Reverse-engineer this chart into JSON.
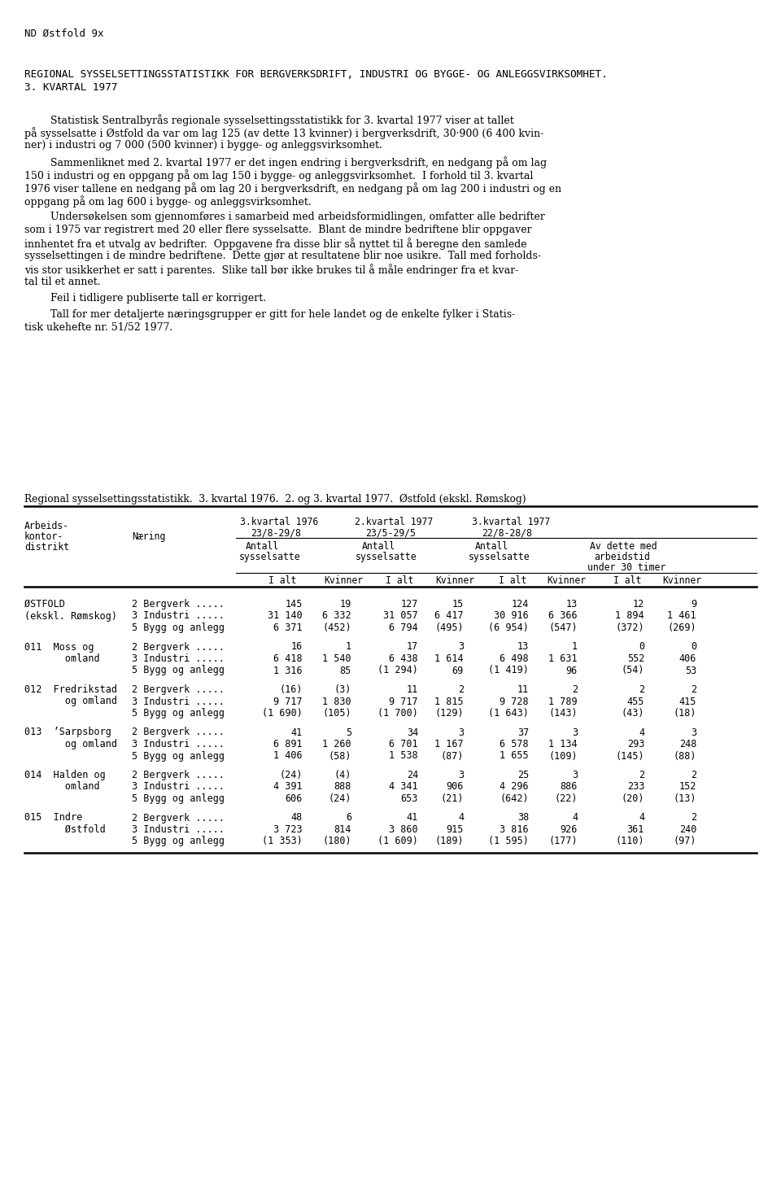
{
  "page_label": "ND Østfold 9x",
  "title_line1": "REGIONAL SYSSELSETTINGSSTATISTIKK FOR BERGVERKSDRIFT, INDUSTRI OG BYGGE- OG ANLEGGSVIRKSOMHET.",
  "title_line2": "3. KVARTAL 1977",
  "para1": [
    "        Statistisk Sentralbyrås regionale sysselsettingsstatistikk for 3. kvartal 1977 viser at tallet",
    "på sysselsatte i Østfold da var om lag 125 (av dette 13 kvinner) i bergverksdrift, 30·900 (6 400 kvin-",
    "ner) i industri og 7 000 (500 kvinner) i bygge- og anleggsvirksomhet."
  ],
  "para2": [
    "        Sammenliknet med 2. kvartal 1977 er det ingen endring i bergverksdrift, en nedgang på om lag",
    "150 i industri og en oppgang på om lag 150 i bygge- og anleggsvirksomhet.  I forhold til 3. kvartal",
    "1976 viser tallene en nedgang på om lag 20 i bergverksdrift, en nedgang på om lag 200 i industri og en",
    "oppgang på om lag 600 i bygge- og anleggsvirksomhet."
  ],
  "para3": [
    "        Undersøkelsen som gjennomføres i samarbeid med arbeidsformidlingen, omfatter alle bedrifter",
    "som i 1975 var registrert med 20 eller flere sysselsatte.  Blant de mindre bedriftene blir oppgaver",
    "innhentet fra et utvalg av bedrifter.  Oppgavene fra disse blir så nyttet til å beregne den samlede",
    "sysselsettingen i de mindre bedriftene.  Dette gjør at resultatene blir noe usikre.  Tall med forholds-",
    "vis stor usikkerhet er satt i parentes.  Slike tall bør ikke brukes til å måle endringer fra et kvar-",
    "tal til et annet."
  ],
  "para4": [
    "        Feil i tidligere publiserte tall er korrigert."
  ],
  "para5": [
    "        Tall for mer detaljerte næringsgrupper er gitt for hele landet og de enkelte fylker i Statis-",
    "tisk ukehefte nr. 51/52 1977."
  ],
  "table_title": "Regional sysselsettingsstatistikk.  3. kvartal 1976.  2. og 3. kvartal 1977.  Østfold (ekskl. Rømskog)",
  "rows": [
    {
      "d1": "ØSTFOLD",
      "d2": "(ekskl. Rømskog)",
      "naring": [
        "2 Bergverk .....",
        "3 Industri .....",
        "5 Bygg og anlegg"
      ],
      "data": [
        [
          "145",
          "19",
          "127",
          "15",
          "124",
          "13",
          "12",
          "9"
        ],
        [
          "31 140",
          "6 332",
          "31 057",
          "6 417",
          "30 916",
          "6 366",
          "1 894",
          "1 461"
        ],
        [
          "6 371",
          "(452)",
          "6 794",
          "(495)",
          "(6 954)",
          "(547)",
          "(372)",
          "(269)"
        ]
      ]
    },
    {
      "d1": "011  Moss og",
      "d2": "       omland",
      "naring": [
        "2 Bergverk .....",
        "3 Industri .....",
        "5 Bygg og anlegg"
      ],
      "data": [
        [
          "16",
          "1",
          "17",
          "3",
          "13",
          "1",
          "0",
          "0"
        ],
        [
          "6 418",
          "1 540",
          "6 438",
          "1 614",
          "6 498",
          "1 631",
          "552",
          "406"
        ],
        [
          "1 316",
          "85",
          "(1 294)",
          "69",
          "(1 419)",
          "96",
          "(54)",
          "53"
        ]
      ]
    },
    {
      "d1": "012  Fredrikstad",
      "d2": "       og omland",
      "naring": [
        "2 Bergverk .....",
        "3 Industri .....",
        "5 Bygg og anlegg"
      ],
      "data": [
        [
          "(16)",
          "(3)",
          "11",
          "2",
          "11",
          "2",
          "2",
          "2"
        ],
        [
          "9 717",
          "1 830",
          "9 717",
          "1 815",
          "9 728",
          "1 789",
          "455",
          "415"
        ],
        [
          "(1 690)",
          "(105)",
          "(1 700)",
          "(129)",
          "(1 643)",
          "(143)",
          "(43)",
          "(18)"
        ]
      ]
    },
    {
      "d1": "013  ʼSarpsborg",
      "d2": "       og omland",
      "naring": [
        "2 Bergverk .....",
        "3 Industri .....",
        "5 Bygg og anlegg"
      ],
      "data": [
        [
          "41",
          "5",
          "34",
          "3",
          "37",
          "3",
          "4",
          "3"
        ],
        [
          "6 891",
          "1 260",
          "6 701",
          "1 167",
          "6 578",
          "1 134",
          "293",
          "248"
        ],
        [
          "1 406",
          "(58)",
          "1 538",
          "(87)",
          "1 655",
          "(109)",
          "(145)",
          "(88)"
        ]
      ]
    },
    {
      "d1": "014  Halden og",
      "d2": "       omland",
      "naring": [
        "2 Bergverk .....",
        "3 Industri .....",
        "5 Bygg og anlegg"
      ],
      "data": [
        [
          "(24)",
          "(4)",
          "24",
          "3",
          "25",
          "3",
          "2",
          "2"
        ],
        [
          "4 391",
          "888",
          "4 341",
          "906",
          "4 296",
          "886",
          "233",
          "152"
        ],
        [
          "606",
          "(24)",
          "653",
          "(21)",
          "(642)",
          "(22)",
          "(20)",
          "(13)"
        ]
      ]
    },
    {
      "d1": "015  Indre",
      "d2": "       Østfold",
      "naring": [
        "2 Bergverk .....",
        "3 Industri .....",
        "5 Bygg og anlegg"
      ],
      "data": [
        [
          "48",
          "6",
          "41",
          "4",
          "38",
          "4",
          "4",
          "2"
        ],
        [
          "3 723",
          "814",
          "3 860",
          "915",
          "3 816",
          "926",
          "361",
          "240"
        ],
        [
          "(1 353)",
          "(180)",
          "(1 609)",
          "(189)",
          "(1 595)",
          "(177)",
          "(110)",
          "(97)"
        ]
      ]
    }
  ],
  "bg_color": "#ffffff",
  "text_color": "#000000"
}
